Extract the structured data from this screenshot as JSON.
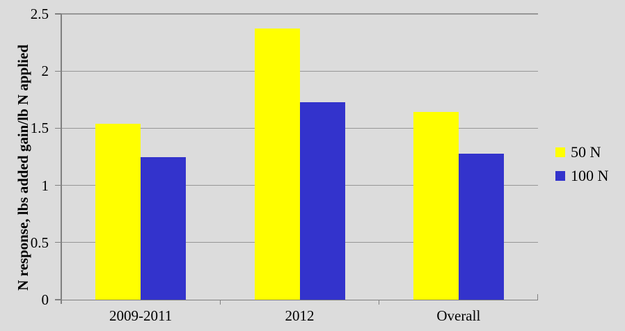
{
  "chart_data": {
    "type": "bar",
    "categories": [
      "2009-2011",
      "2012",
      "Overall"
    ],
    "series": [
      {
        "name": "50 N",
        "color": "#FFFF00",
        "values": [
          1.54,
          2.37,
          1.64
        ]
      },
      {
        "name": "100 N",
        "color": "#3333CC",
        "values": [
          1.25,
          1.73,
          1.28
        ]
      }
    ],
    "ylabel": "N response, lbs added gain/lb N applied",
    "ylim": [
      0,
      2.5
    ],
    "yticks": [
      0,
      0.5,
      1,
      1.5,
      2,
      2.5
    ],
    "ytick_labels": [
      "0",
      "0.5",
      "1",
      "1.5",
      "2",
      "2.5"
    ],
    "grid": true,
    "legend_position": "right",
    "colors": {
      "background": "#DCDCDC",
      "gridline": "#969696",
      "axis": "#808080",
      "text": "#000000"
    }
  }
}
